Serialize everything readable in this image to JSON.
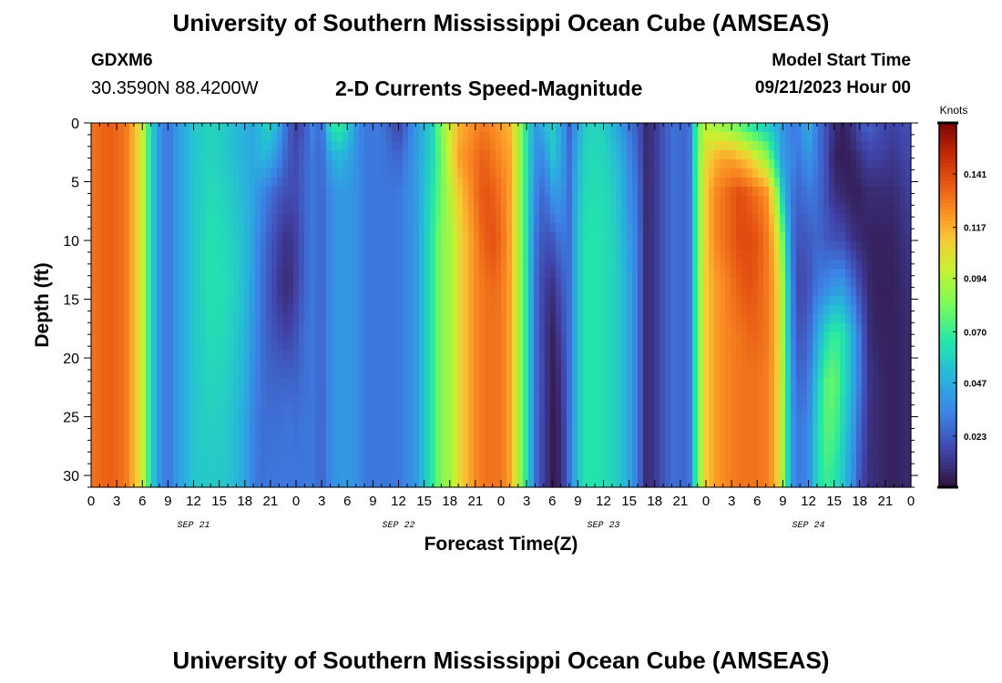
{
  "header": {
    "title": "University of Southern Mississippi Ocean Cube (AMSEAS)",
    "station_id": "GDXM6",
    "coordinates": "30.3590N  88.4200W",
    "subtitle": "2-D Currents Speed-Magnitude",
    "model_start_label": "Model Start Time",
    "model_start_value": "09/21/2023 Hour 00"
  },
  "footer": {
    "title": "University of Southern Mississippi Ocean Cube (AMSEAS)"
  },
  "chart_data": {
    "type": "heatmap",
    "title": "2-D Currents Speed-Magnitude",
    "xlabel": "Forecast Time(Z)",
    "ylabel": "Depth (ft)",
    "x_hours_range": [
      0,
      96
    ],
    "ylim": [
      0,
      31
    ],
    "y_inverted": true,
    "x_tick_labels": [
      "0",
      "3",
      "6",
      "9",
      "12",
      "15",
      "18",
      "21",
      "0",
      "3",
      "6",
      "9",
      "12",
      "15",
      "18",
      "21",
      "0",
      "3",
      "6",
      "9",
      "12",
      "15",
      "18",
      "21",
      "0",
      "3",
      "6",
      "9",
      "12",
      "15",
      "18",
      "21",
      "0"
    ],
    "x_tick_hours": [
      0,
      3,
      6,
      9,
      12,
      15,
      18,
      21,
      24,
      27,
      30,
      33,
      36,
      39,
      42,
      45,
      48,
      51,
      54,
      57,
      60,
      63,
      66,
      69,
      72,
      75,
      78,
      81,
      84,
      87,
      90,
      93,
      96
    ],
    "date_labels": [
      {
        "label": "SEP 21",
        "hour": 12
      },
      {
        "label": "SEP 22",
        "hour": 36
      },
      {
        "label": "SEP 23",
        "hour": 60
      },
      {
        "label": "SEP 24",
        "hour": 84
      }
    ],
    "y_tick_values": [
      0,
      5,
      10,
      15,
      20,
      25,
      30
    ],
    "y_tick_labels": [
      "0",
      "5",
      "10",
      "15",
      "20",
      "25",
      "30"
    ],
    "colorbar": {
      "title": "Knots",
      "range": [
        0,
        0.164
      ],
      "tick_values": [
        0.023,
        0.047,
        0.07,
        0.094,
        0.117,
        0.141
      ],
      "tick_labels": [
        "0.023",
        "0.047",
        "0.070",
        "0.094",
        "0.117",
        "0.141"
      ]
    },
    "columns_hours": [
      0,
      2,
      4,
      6,
      7,
      8,
      9,
      10,
      12,
      14,
      16,
      18,
      19,
      20,
      21,
      22,
      23,
      24,
      25,
      26,
      27,
      28,
      29,
      30,
      31,
      32,
      34,
      36,
      38,
      40,
      41,
      42,
      43,
      44,
      45,
      46,
      47,
      48,
      49,
      50,
      51,
      52,
      53,
      54,
      55,
      56,
      57,
      58,
      59,
      60,
      61,
      62,
      63,
      64,
      65,
      66,
      68,
      70,
      71,
      72,
      73,
      74,
      75,
      76,
      77,
      78,
      79,
      80,
      81,
      82,
      83,
      84,
      85,
      86,
      87,
      88,
      89,
      90,
      91,
      92,
      94,
      96
    ],
    "depth_levels_ft": [
      0,
      3,
      6,
      10,
      14,
      18,
      22,
      26,
      31
    ],
    "speed_knots": [
      [
        0.13,
        0.13,
        0.13,
        0.13,
        0.13,
        0.13,
        0.13,
        0.13,
        0.13
      ],
      [
        0.135,
        0.135,
        0.135,
        0.135,
        0.135,
        0.135,
        0.135,
        0.135,
        0.135
      ],
      [
        0.13,
        0.13,
        0.13,
        0.13,
        0.13,
        0.13,
        0.13,
        0.13,
        0.13
      ],
      [
        0.1,
        0.1,
        0.1,
        0.1,
        0.1,
        0.1,
        0.1,
        0.1,
        0.1
      ],
      [
        0.06,
        0.06,
        0.06,
        0.06,
        0.06,
        0.06,
        0.06,
        0.06,
        0.06
      ],
      [
        0.04,
        0.04,
        0.04,
        0.04,
        0.04,
        0.04,
        0.04,
        0.04,
        0.04
      ],
      [
        0.028,
        0.028,
        0.028,
        0.028,
        0.028,
        0.028,
        0.028,
        0.028,
        0.028
      ],
      [
        0.04,
        0.04,
        0.04,
        0.04,
        0.04,
        0.04,
        0.04,
        0.04,
        0.04
      ],
      [
        0.055,
        0.055,
        0.055,
        0.055,
        0.055,
        0.055,
        0.055,
        0.055,
        0.055
      ],
      [
        0.06,
        0.06,
        0.062,
        0.065,
        0.065,
        0.063,
        0.06,
        0.058,
        0.056
      ],
      [
        0.055,
        0.055,
        0.058,
        0.06,
        0.062,
        0.06,
        0.058,
        0.056,
        0.055
      ],
      [
        0.048,
        0.048,
        0.05,
        0.052,
        0.052,
        0.05,
        0.048,
        0.045,
        0.045
      ],
      [
        0.045,
        0.045,
        0.044,
        0.042,
        0.04,
        0.038,
        0.035,
        0.033,
        0.032
      ],
      [
        0.055,
        0.05,
        0.035,
        0.03,
        0.028,
        0.028,
        0.028,
        0.028,
        0.028
      ],
      [
        0.06,
        0.045,
        0.028,
        0.022,
        0.02,
        0.022,
        0.025,
        0.028,
        0.03
      ],
      [
        0.045,
        0.035,
        0.022,
        0.015,
        0.012,
        0.018,
        0.025,
        0.028,
        0.03
      ],
      [
        0.025,
        0.022,
        0.018,
        0.01,
        0.008,
        0.015,
        0.025,
        0.03,
        0.03
      ],
      [
        0.015,
        0.018,
        0.018,
        0.015,
        0.015,
        0.02,
        0.025,
        0.028,
        0.03
      ],
      [
        0.022,
        0.025,
        0.025,
        0.025,
        0.025,
        0.028,
        0.028,
        0.03,
        0.03
      ],
      [
        0.035,
        0.03,
        0.03,
        0.03,
        0.03,
        0.03,
        0.03,
        0.03,
        0.03
      ],
      [
        0.025,
        0.025,
        0.025,
        0.025,
        0.025,
        0.025,
        0.025,
        0.025,
        0.025
      ],
      [
        0.065,
        0.045,
        0.035,
        0.035,
        0.035,
        0.035,
        0.035,
        0.035,
        0.035
      ],
      [
        0.07,
        0.05,
        0.04,
        0.04,
        0.04,
        0.04,
        0.04,
        0.04,
        0.04
      ],
      [
        0.06,
        0.045,
        0.04,
        0.04,
        0.04,
        0.04,
        0.04,
        0.04,
        0.04
      ],
      [
        0.04,
        0.038,
        0.038,
        0.038,
        0.038,
        0.038,
        0.038,
        0.038,
        0.038
      ],
      [
        0.03,
        0.03,
        0.03,
        0.03,
        0.03,
        0.03,
        0.03,
        0.03,
        0.03
      ],
      [
        0.03,
        0.03,
        0.03,
        0.03,
        0.03,
        0.03,
        0.03,
        0.03,
        0.03
      ],
      [
        0.015,
        0.025,
        0.03,
        0.03,
        0.03,
        0.03,
        0.03,
        0.03,
        0.03
      ],
      [
        0.04,
        0.04,
        0.04,
        0.04,
        0.04,
        0.04,
        0.04,
        0.04,
        0.04
      ],
      [
        0.06,
        0.062,
        0.065,
        0.068,
        0.068,
        0.068,
        0.068,
        0.068,
        0.068
      ],
      [
        0.085,
        0.08,
        0.08,
        0.085,
        0.085,
        0.085,
        0.085,
        0.085,
        0.085
      ],
      [
        0.1,
        0.1,
        0.095,
        0.09,
        0.09,
        0.09,
        0.09,
        0.09,
        0.09
      ],
      [
        0.115,
        0.12,
        0.11,
        0.105,
        0.105,
        0.105,
        0.105,
        0.105,
        0.105
      ],
      [
        0.12,
        0.125,
        0.12,
        0.115,
        0.115,
        0.115,
        0.115,
        0.115,
        0.115
      ],
      [
        0.125,
        0.13,
        0.13,
        0.125,
        0.125,
        0.125,
        0.125,
        0.125,
        0.125
      ],
      [
        0.128,
        0.135,
        0.138,
        0.135,
        0.13,
        0.13,
        0.13,
        0.13,
        0.13
      ],
      [
        0.125,
        0.13,
        0.135,
        0.138,
        0.132,
        0.13,
        0.13,
        0.13,
        0.13
      ],
      [
        0.12,
        0.125,
        0.13,
        0.133,
        0.13,
        0.13,
        0.13,
        0.13,
        0.13
      ],
      [
        0.115,
        0.12,
        0.12,
        0.12,
        0.12,
        0.12,
        0.12,
        0.12,
        0.12
      ],
      [
        0.095,
        0.095,
        0.095,
        0.095,
        0.095,
        0.095,
        0.095,
        0.095,
        0.095
      ],
      [
        0.065,
        0.065,
        0.065,
        0.065,
        0.065,
        0.065,
        0.065,
        0.065,
        0.065
      ],
      [
        0.04,
        0.038,
        0.035,
        0.03,
        0.028,
        0.028,
        0.028,
        0.028,
        0.028
      ],
      [
        0.05,
        0.035,
        0.025,
        0.02,
        0.015,
        0.015,
        0.015,
        0.015,
        0.015
      ],
      [
        0.06,
        0.055,
        0.04,
        0.02,
        0.01,
        0.005,
        0.004,
        0.003,
        0.003
      ],
      [
        0.045,
        0.045,
        0.04,
        0.03,
        0.02,
        0.015,
        0.01,
        0.008,
        0.008
      ],
      [
        0.025,
        0.028,
        0.028,
        0.028,
        0.028,
        0.028,
        0.028,
        0.028,
        0.028
      ],
      [
        0.045,
        0.05,
        0.052,
        0.055,
        0.055,
        0.055,
        0.055,
        0.055,
        0.055
      ],
      [
        0.058,
        0.06,
        0.062,
        0.065,
        0.065,
        0.065,
        0.065,
        0.065,
        0.065
      ],
      [
        0.06,
        0.062,
        0.063,
        0.065,
        0.065,
        0.065,
        0.065,
        0.065,
        0.065
      ],
      [
        0.058,
        0.06,
        0.062,
        0.063,
        0.063,
        0.063,
        0.063,
        0.063,
        0.063
      ],
      [
        0.05,
        0.055,
        0.058,
        0.06,
        0.06,
        0.06,
        0.06,
        0.06,
        0.06
      ],
      [
        0.04,
        0.048,
        0.05,
        0.052,
        0.055,
        0.055,
        0.055,
        0.055,
        0.055
      ],
      [
        0.03,
        0.035,
        0.038,
        0.042,
        0.045,
        0.045,
        0.045,
        0.045,
        0.045
      ],
      [
        0.022,
        0.025,
        0.028,
        0.03,
        0.03,
        0.03,
        0.03,
        0.03,
        0.03
      ],
      [
        0.008,
        0.008,
        0.008,
        0.008,
        0.008,
        0.008,
        0.008,
        0.008,
        0.008
      ],
      [
        0.012,
        0.012,
        0.012,
        0.012,
        0.012,
        0.012,
        0.012,
        0.012,
        0.012
      ],
      [
        0.028,
        0.028,
        0.028,
        0.028,
        0.028,
        0.028,
        0.028,
        0.028,
        0.028
      ],
      [
        0.025,
        0.025,
        0.025,
        0.025,
        0.025,
        0.025,
        0.025,
        0.025,
        0.025
      ],
      [
        0.08,
        0.08,
        0.08,
        0.08,
        0.08,
        0.08,
        0.08,
        0.08,
        0.08
      ],
      [
        0.095,
        0.105,
        0.11,
        0.11,
        0.11,
        0.11,
        0.11,
        0.11,
        0.11
      ],
      [
        0.09,
        0.115,
        0.125,
        0.125,
        0.12,
        0.12,
        0.12,
        0.12,
        0.12
      ],
      [
        0.085,
        0.12,
        0.13,
        0.13,
        0.125,
        0.125,
        0.125,
        0.125,
        0.125
      ],
      [
        0.08,
        0.12,
        0.135,
        0.135,
        0.13,
        0.128,
        0.128,
        0.128,
        0.128
      ],
      [
        0.075,
        0.115,
        0.14,
        0.14,
        0.135,
        0.13,
        0.13,
        0.13,
        0.13
      ],
      [
        0.065,
        0.11,
        0.135,
        0.14,
        0.138,
        0.133,
        0.13,
        0.13,
        0.13
      ],
      [
        0.06,
        0.1,
        0.13,
        0.138,
        0.135,
        0.133,
        0.13,
        0.13,
        0.13
      ],
      [
        0.055,
        0.09,
        0.125,
        0.13,
        0.13,
        0.13,
        0.128,
        0.128,
        0.128
      ],
      [
        0.05,
        0.065,
        0.1,
        0.115,
        0.12,
        0.12,
        0.12,
        0.12,
        0.12
      ],
      [
        0.04,
        0.04,
        0.055,
        0.08,
        0.09,
        0.09,
        0.09,
        0.09,
        0.09
      ],
      [
        0.03,
        0.035,
        0.03,
        0.03,
        0.035,
        0.035,
        0.04,
        0.04,
        0.04
      ],
      [
        0.035,
        0.03,
        0.025,
        0.02,
        0.015,
        0.02,
        0.025,
        0.03,
        0.03
      ],
      [
        0.05,
        0.04,
        0.03,
        0.022,
        0.02,
        0.025,
        0.03,
        0.035,
        0.035
      ],
      [
        0.03,
        0.03,
        0.028,
        0.026,
        0.03,
        0.045,
        0.055,
        0.06,
        0.06
      ],
      [
        0.02,
        0.02,
        0.02,
        0.022,
        0.035,
        0.06,
        0.075,
        0.075,
        0.07
      ],
      [
        0.01,
        0.005,
        0.01,
        0.02,
        0.04,
        0.07,
        0.08,
        0.075,
        0.065
      ],
      [
        0.005,
        0.004,
        0.008,
        0.018,
        0.04,
        0.065,
        0.065,
        0.06,
        0.055
      ],
      [
        0.01,
        0.005,
        0.005,
        0.012,
        0.03,
        0.05,
        0.05,
        0.045,
        0.04
      ],
      [
        0.02,
        0.01,
        0.005,
        0.008,
        0.018,
        0.03,
        0.03,
        0.025,
        0.02
      ],
      [
        0.025,
        0.015,
        0.008,
        0.006,
        0.008,
        0.01,
        0.012,
        0.01,
        0.01
      ],
      [
        0.02,
        0.015,
        0.008,
        0.005,
        0.005,
        0.006,
        0.008,
        0.008,
        0.008
      ],
      [
        0.015,
        0.012,
        0.008,
        0.006,
        0.005,
        0.005,
        0.005,
        0.005,
        0.005
      ],
      [
        0.02,
        0.018,
        0.015,
        0.012,
        0.01,
        0.008,
        0.008,
        0.008,
        0.008
      ]
    ]
  }
}
